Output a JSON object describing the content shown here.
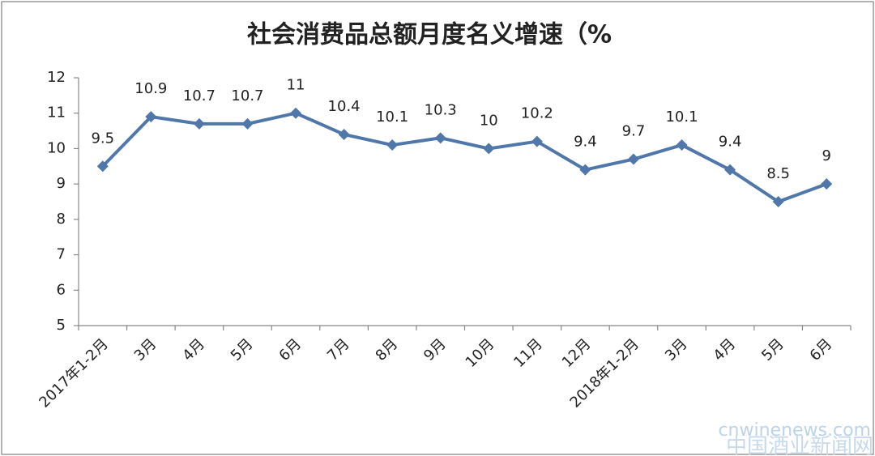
{
  "chart_data": {
    "type": "line",
    "title": "社会消费品总额月度名义增速（%",
    "categories": [
      "2017年1-2月",
      "3月",
      "4月",
      "5月",
      "6月",
      "7月",
      "8月",
      "9月",
      "10月",
      "11月",
      "12月",
      "2018年1-2月",
      "3月",
      "4月",
      "5月",
      "6月"
    ],
    "values": [
      9.5,
      10.9,
      10.7,
      10.7,
      11,
      10.4,
      10.1,
      10.3,
      10,
      10.2,
      9.4,
      9.7,
      10.1,
      9.4,
      8.5,
      9
    ],
    "color": "#4f77aa",
    "ylim": [
      5,
      12
    ],
    "yticks": [
      5,
      6,
      7,
      8,
      9,
      10,
      11,
      12
    ],
    "grid": false
  },
  "watermark": {
    "url": "cnwinenews.com",
    "name": "中国酒业新闻网"
  }
}
